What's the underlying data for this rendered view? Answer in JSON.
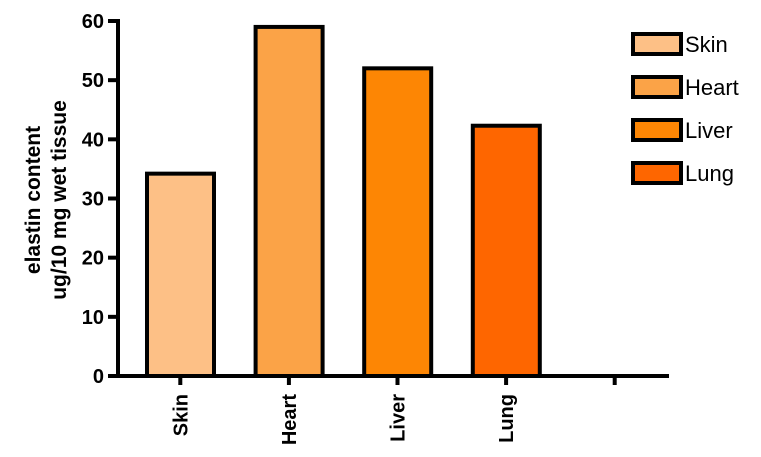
{
  "chart_data": {
    "type": "bar",
    "categories": [
      "Skin",
      "Heart",
      "Liver",
      "Lung",
      ""
    ],
    "values": [
      34.2,
      59.0,
      52.0,
      42.3,
      null
    ],
    "colors": [
      "#FDC086",
      "#FBA347",
      "#FD8604",
      "#FE6600"
    ],
    "ylabel_line1": "elastin content",
    "ylabel_line2": "ug/10 mg wet tissue",
    "xlabel": "",
    "ylim": [
      0,
      60
    ],
    "yticks": [
      0,
      10,
      20,
      30,
      40,
      50,
      60
    ],
    "legend": {
      "position": "top-right",
      "items": [
        "Skin",
        "Heart",
        "Liver",
        "Lung"
      ]
    },
    "grid": false
  }
}
